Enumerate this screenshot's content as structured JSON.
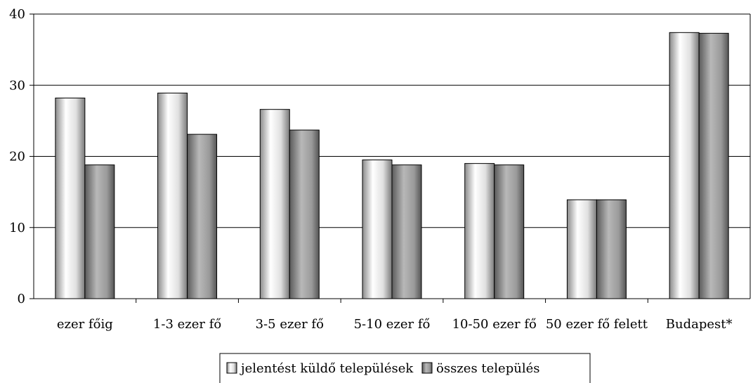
{
  "chart_data": {
    "type": "bar",
    "categories": [
      "ezer főig",
      "1-3 ezer fő",
      "3-5 ezer fő",
      "5-10 ezer fő",
      "10-50 ezer fő",
      "50 ezer fő felett",
      "Budapest*"
    ],
    "series": [
      {
        "name": "jelentést küldő települések",
        "values": [
          28.2,
          28.9,
          26.6,
          19.5,
          19.0,
          13.9,
          37.4
        ]
      },
      {
        "name": "összes település",
        "values": [
          18.8,
          23.1,
          23.7,
          18.8,
          18.8,
          13.9,
          37.3
        ]
      }
    ],
    "ylim": [
      0,
      40
    ],
    "yticks": [
      0,
      10,
      20,
      30,
      40
    ],
    "title": "",
    "xlabel": "",
    "ylabel": "",
    "grid": true,
    "legend_position": "bottom",
    "colors": {
      "series1": "#e6e6e6",
      "series2": "#9a9a9a",
      "grid": "#000000"
    }
  }
}
